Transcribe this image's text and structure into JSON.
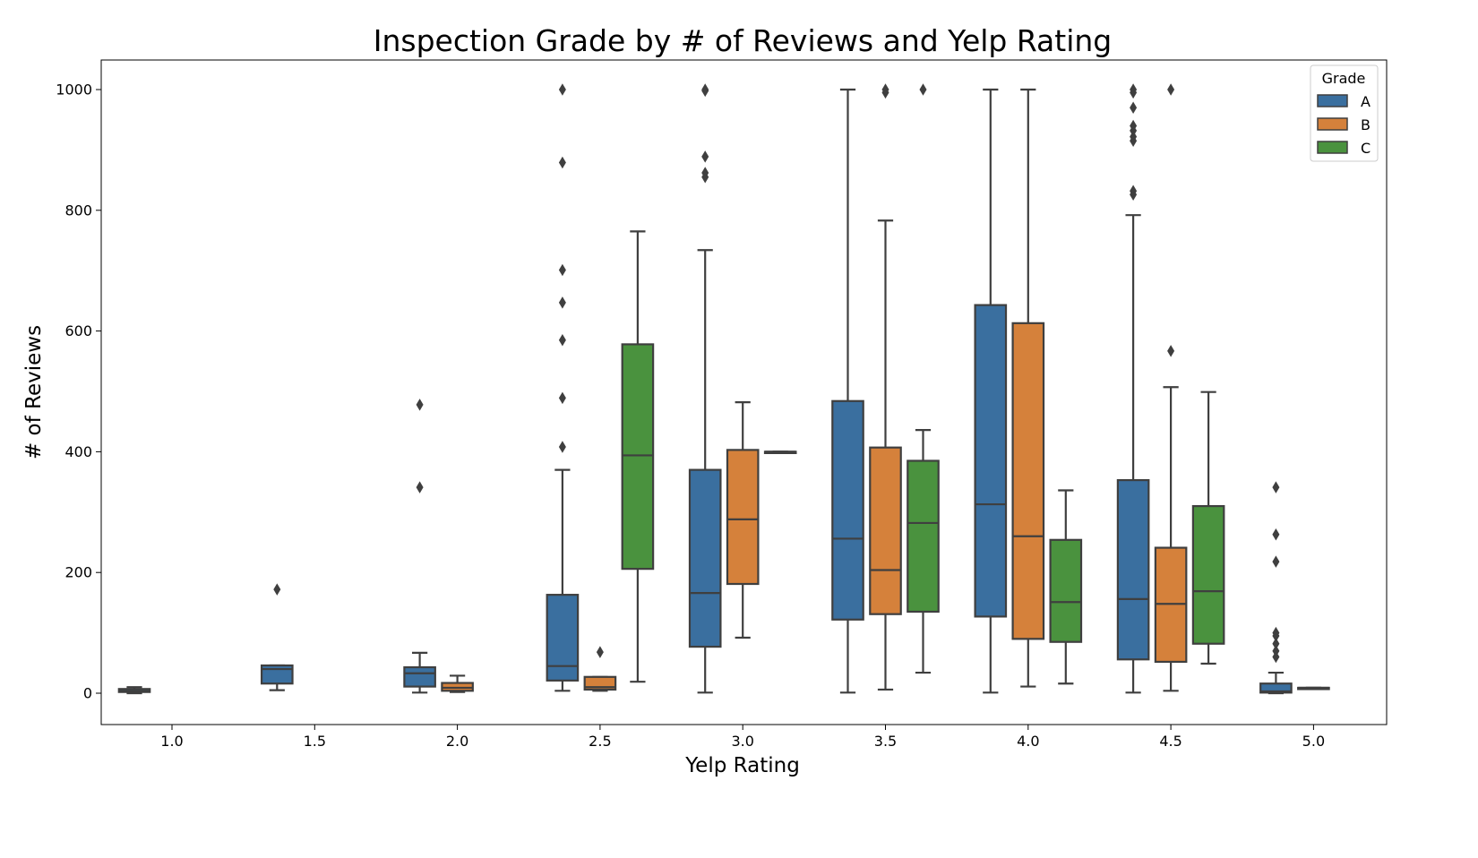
{
  "chart_data": {
    "type": "box",
    "title": "Inspection Grade by # of Reviews and Yelp Rating",
    "xlabel": "Yelp Rating",
    "ylabel": "# of Reviews",
    "ylim": [
      -50,
      1050
    ],
    "yticks": [
      0,
      200,
      400,
      600,
      800,
      1000
    ],
    "categories": [
      "1.0",
      "1.5",
      "2.0",
      "2.5",
      "3.0",
      "3.5",
      "4.0",
      "4.5",
      "5.0"
    ],
    "grid": false,
    "legend": {
      "title": "Grade",
      "position": "top-right"
    },
    "series": [
      {
        "name": "A",
        "color": "#3a6f9f",
        "boxes": [
          {
            "category": "1.0",
            "whislo": 0,
            "q1": 2,
            "med": 4,
            "q3": 7,
            "whishi": 10,
            "fliers": []
          },
          {
            "category": "1.5",
            "whislo": 5,
            "q1": 16,
            "med": 40,
            "q3": 46,
            "whishi": 46,
            "fliers": [
              172
            ]
          },
          {
            "category": "2.0",
            "whislo": 1,
            "q1": 11,
            "med": 33,
            "q3": 43,
            "whishi": 67,
            "fliers": [
              341,
              478
            ]
          },
          {
            "category": "2.5",
            "whislo": 4,
            "q1": 21,
            "med": 45,
            "q3": 163,
            "whishi": 370,
            "fliers": [
              408,
              489,
              585,
              647,
              701,
              879,
              1000
            ]
          },
          {
            "category": "3.0",
            "whislo": 1,
            "q1": 77,
            "med": 166,
            "q3": 370,
            "whishi": 734,
            "fliers": [
              855,
              862,
              889,
              998,
              1000
            ]
          },
          {
            "category": "3.5",
            "whislo": 1,
            "q1": 122,
            "med": 256,
            "q3": 484,
            "whishi": 1000,
            "fliers": []
          },
          {
            "category": "4.0",
            "whislo": 1,
            "q1": 127,
            "med": 313,
            "q3": 643,
            "whishi": 1000,
            "fliers": []
          },
          {
            "category": "4.5",
            "whislo": 1,
            "q1": 56,
            "med": 156,
            "q3": 353,
            "whishi": 792,
            "fliers": [
              826,
              832,
              915,
              922,
              932,
              940,
              970,
              995,
              1000
            ]
          },
          {
            "category": "5.0",
            "whislo": 0,
            "q1": 1,
            "med": 3,
            "q3": 16,
            "whishi": 34,
            "fliers": [
              60,
              70,
              82,
              95,
              100,
              218,
              263,
              341
            ]
          }
        ]
      },
      {
        "name": "B",
        "color": "#d5813b",
        "boxes": [
          {
            "category": "2.0",
            "whislo": 2,
            "q1": 4,
            "med": 9,
            "q3": 17,
            "whishi": 29,
            "fliers": []
          },
          {
            "category": "2.5",
            "whislo": 4,
            "q1": 6,
            "med": 10,
            "q3": 27,
            "whishi": 27,
            "fliers": [
              68
            ]
          },
          {
            "category": "3.0",
            "whislo": 92,
            "q1": 181,
            "med": 288,
            "q3": 403,
            "whishi": 482,
            "fliers": []
          },
          {
            "category": "3.5",
            "whislo": 6,
            "q1": 131,
            "med": 204,
            "q3": 407,
            "whishi": 783,
            "fliers": [
              995,
              1000
            ]
          },
          {
            "category": "4.0",
            "whislo": 11,
            "q1": 90,
            "med": 260,
            "q3": 613,
            "whishi": 1000,
            "fliers": []
          },
          {
            "category": "4.5",
            "whislo": 4,
            "q1": 52,
            "med": 148,
            "q3": 241,
            "whishi": 507,
            "fliers": [
              567,
              1000
            ]
          },
          {
            "category": "5.0",
            "whislo": 9,
            "q1": 9,
            "med": 9,
            "q3": 9,
            "whishi": 9,
            "fliers": []
          }
        ]
      },
      {
        "name": "C",
        "color": "#4a923e",
        "boxes": [
          {
            "category": "2.5",
            "whislo": 19,
            "q1": 206,
            "med": 394,
            "q3": 578,
            "whishi": 765,
            "fliers": []
          },
          {
            "category": "3.0",
            "whislo": 400,
            "q1": 400,
            "med": 400,
            "q3": 400,
            "whishi": 400,
            "fliers": []
          },
          {
            "category": "3.5",
            "whislo": 34,
            "q1": 135,
            "med": 282,
            "q3": 385,
            "whishi": 436,
            "fliers": [
              1000
            ]
          },
          {
            "category": "4.0",
            "whislo": 16,
            "q1": 85,
            "med": 151,
            "q3": 254,
            "whishi": 336,
            "fliers": []
          },
          {
            "category": "4.5",
            "whislo": 49,
            "q1": 82,
            "med": 169,
            "q3": 310,
            "whishi": 499,
            "fliers": []
          }
        ]
      }
    ]
  }
}
